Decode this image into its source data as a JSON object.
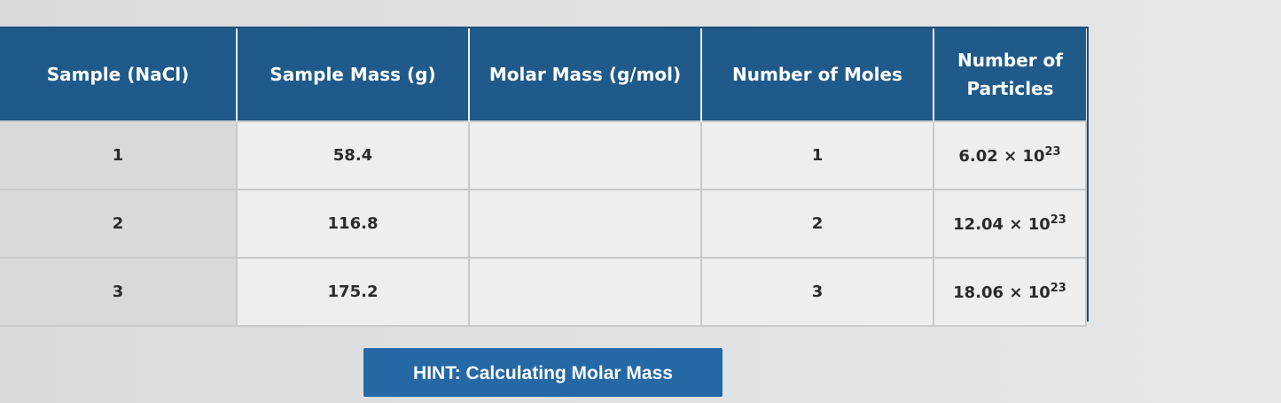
{
  "table": {
    "headers": [
      "Sample (NaCl)",
      "Sample Mass (g)",
      "Molar Mass (g/mol)",
      "Number of Moles",
      "Number of Particles"
    ],
    "rows": [
      {
        "sample": "1",
        "mass": "58.4",
        "molar_mass": "",
        "moles": "1",
        "particles_coef": "6.02 × 10",
        "particles_exp": "23"
      },
      {
        "sample": "2",
        "mass": "116.8",
        "molar_mass": "",
        "moles": "2",
        "particles_coef": "12.04 × 10",
        "particles_exp": "23"
      },
      {
        "sample": "3",
        "mass": "175.2",
        "molar_mass": "",
        "moles": "3",
        "particles_coef": "18.06 × 10",
        "particles_exp": "23"
      }
    ]
  },
  "hint": {
    "label": "HINT: Calculating Molar Mass"
  },
  "colors": {
    "header_bg": "#1f5a8a",
    "hint_bg": "#2468a6"
  }
}
